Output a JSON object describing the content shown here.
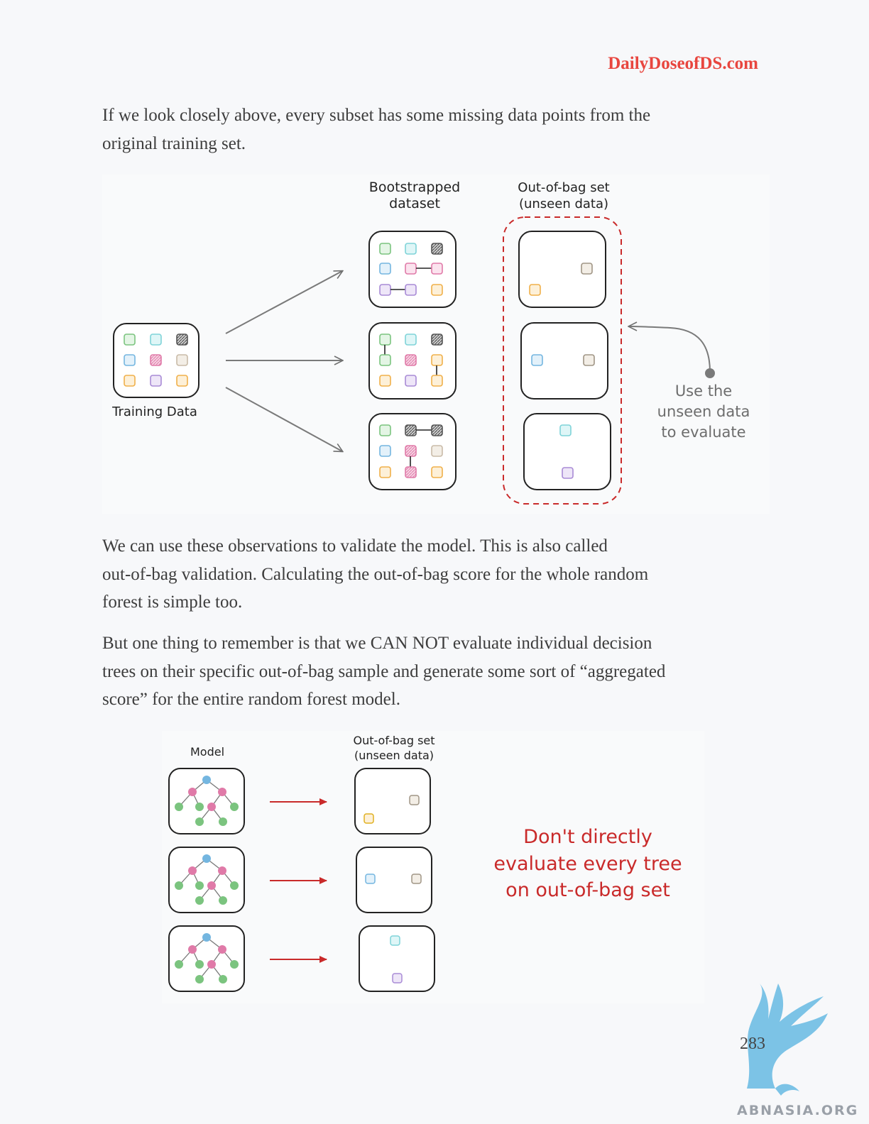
{
  "header": {
    "site": "DailyDoseofDS.com"
  },
  "paragraphs": {
    "p1_line1": "If we look closely above, every subset has some missing data points from the",
    "p1_line2": "original training set.",
    "p2_line1": "We can use these observations to validate the model. This is also called",
    "p2_line2": "out-of-bag validation. Calculating the out-of-bag score for the whole random",
    "p2_line3": "forest is simple too.",
    "p3_line1": "But one thing to remember is that we CAN NOT evaluate individual decision",
    "p3_line2": "trees on their specific out-of-bag sample and generate some sort of “aggregated",
    "p3_line3": "score” for the entire random forest model."
  },
  "figure1": {
    "bootstrapped_title_1": "Bootstrapped",
    "bootstrapped_title_2": "dataset",
    "oob_title_1": "Out-of-bag set",
    "oob_title_2": "(unseen data)",
    "training_label": "Training Data",
    "note_1": "Use the",
    "note_2": "unseen data",
    "note_3": "to evaluate"
  },
  "figure2": {
    "model_label": "Model",
    "oob_title_1": "Out-of-bag set",
    "oob_title_2": "(unseen data)",
    "warning_1": "Don't directly",
    "warning_2": "evaluate every tree",
    "warning_3": "on out-of-bag set"
  },
  "colors": {
    "accent": "#e8463f",
    "warning": "#c92a2a",
    "green": "#7bc47f",
    "cyan": "#7fd3d8",
    "blue": "#74b6e0",
    "pink": "#e07aa8",
    "purple": "#a98bd6",
    "orange": "#f0b04a",
    "beige": "#c9bba8",
    "dark": "#555555"
  },
  "footer": {
    "page_number": "283",
    "watermark": "ABNASIA.ORG"
  }
}
